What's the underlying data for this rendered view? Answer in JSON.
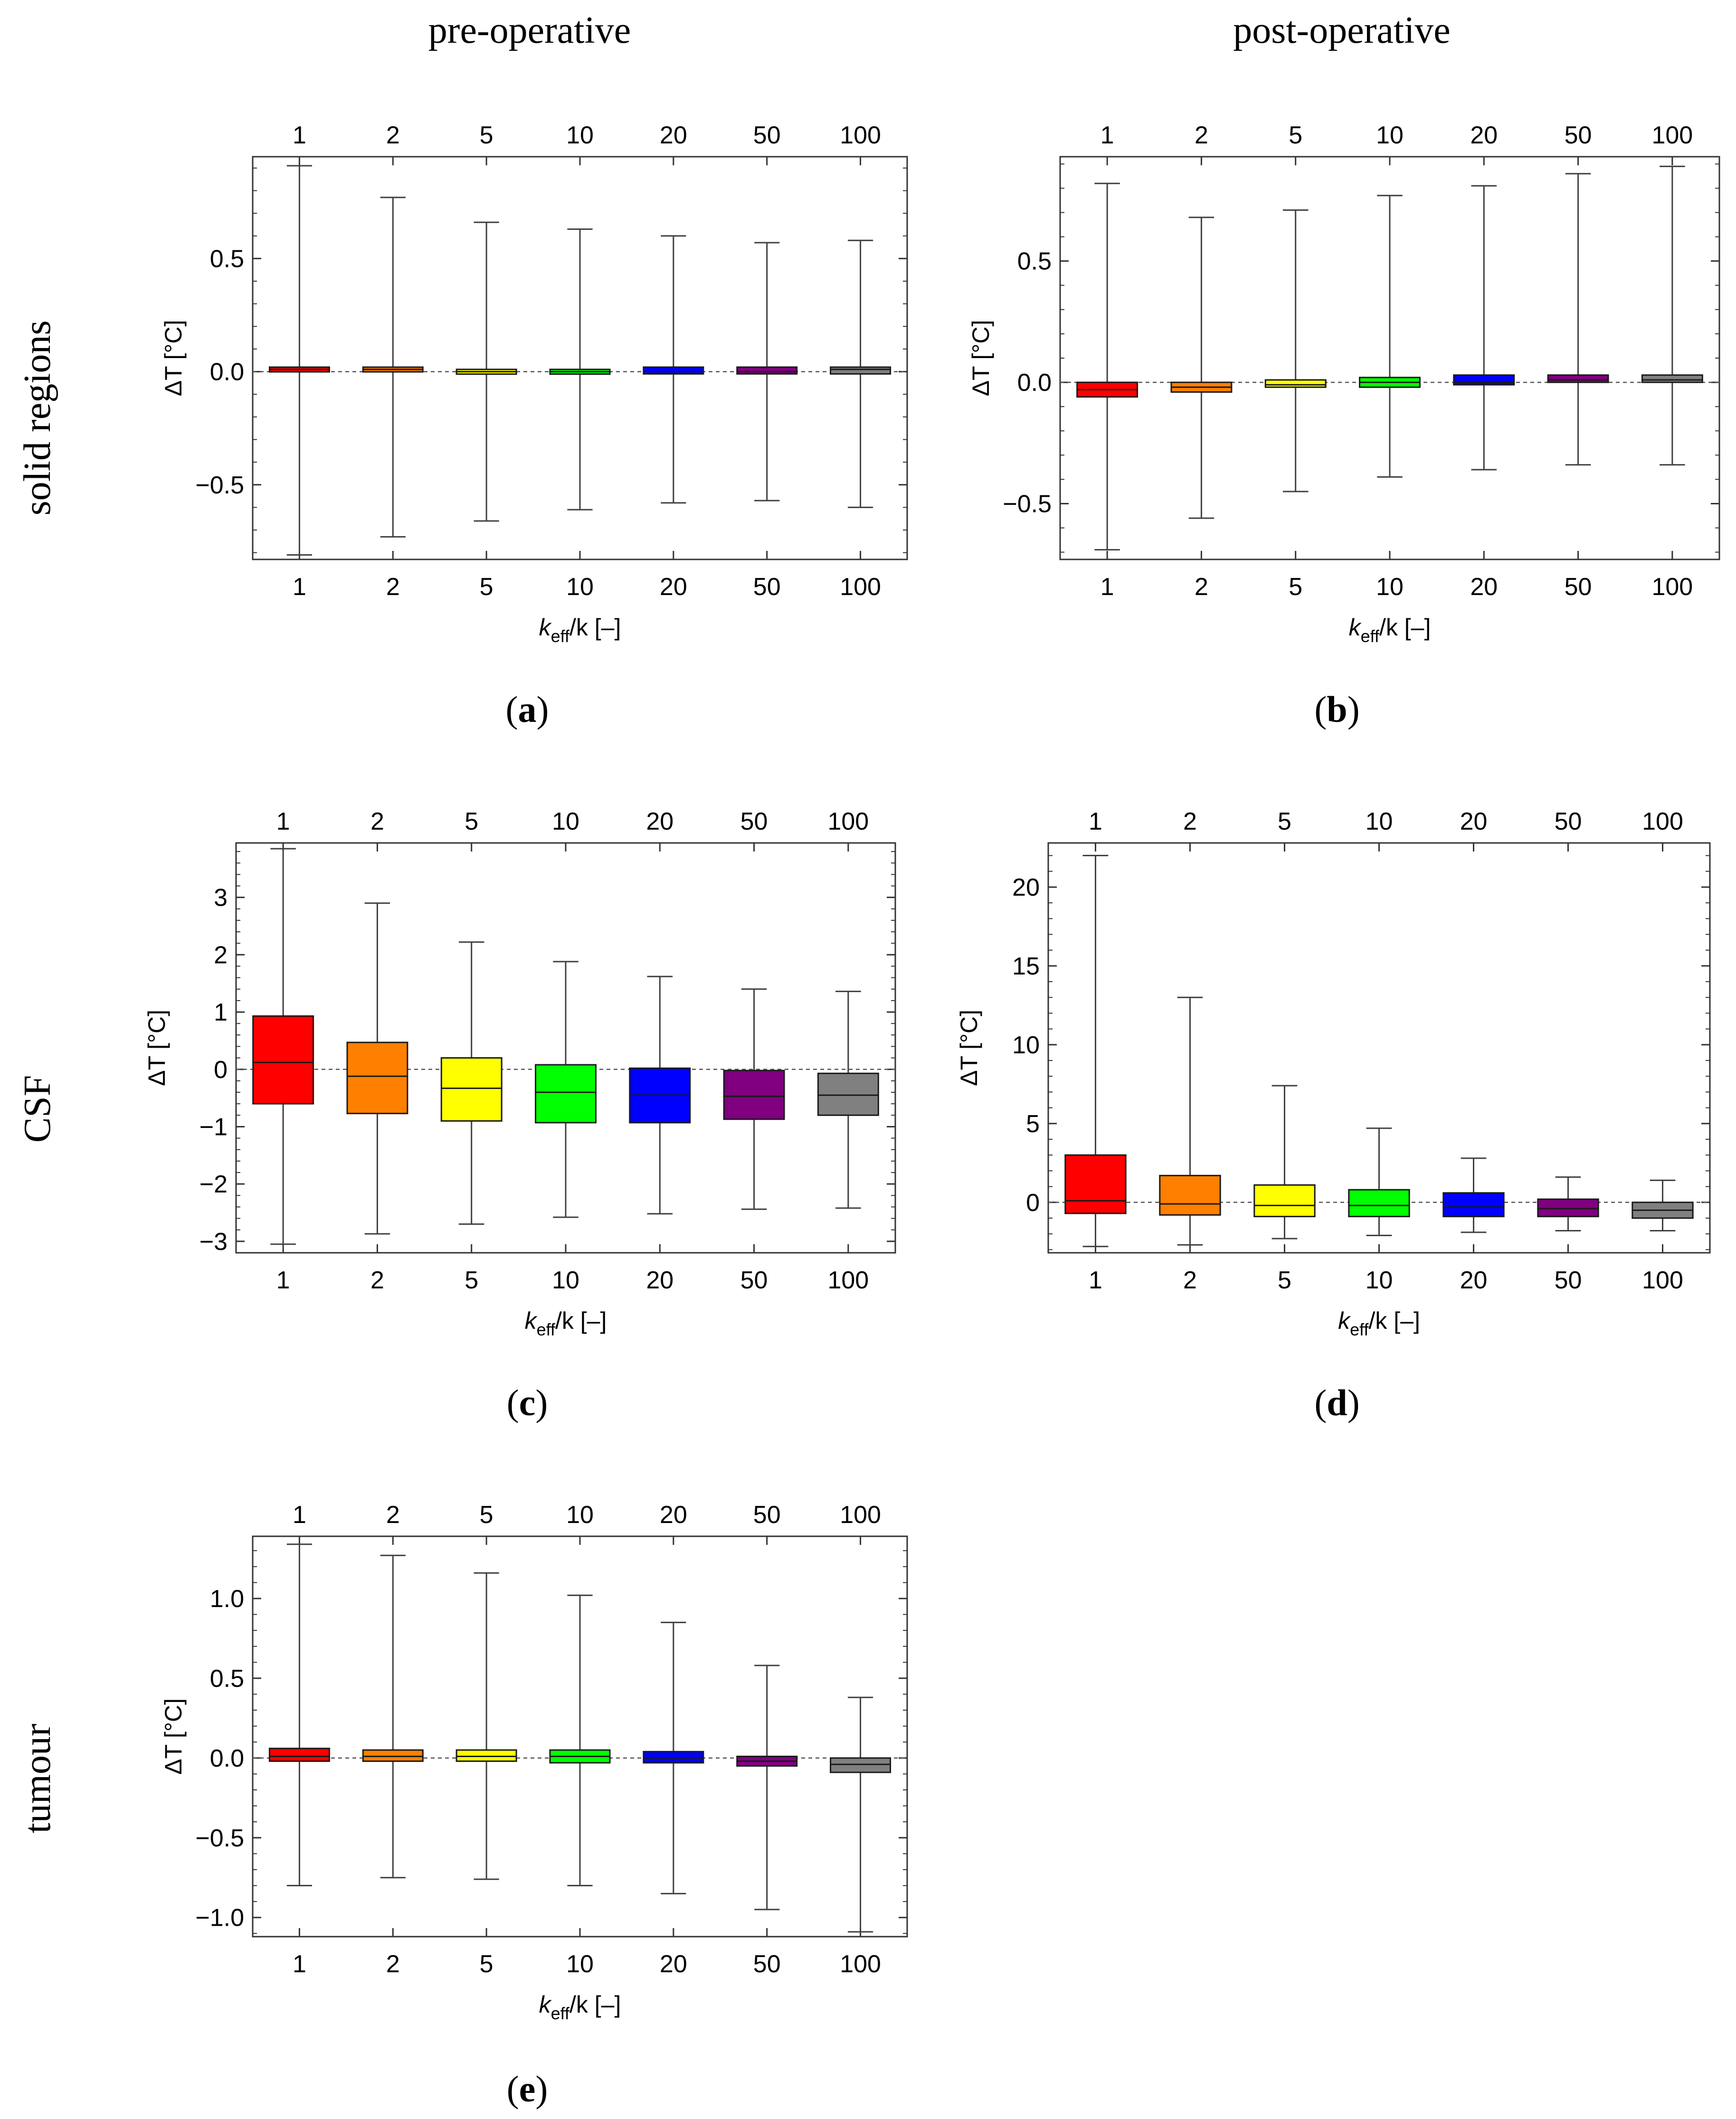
{
  "headers": {
    "pre": "pre-operative",
    "post": "post-operative",
    "row_solid": "solid regions",
    "row_csf": "CSF",
    "row_tumour": "tumour"
  },
  "captions": {
    "a": "a",
    "b": "b",
    "c": "c",
    "d": "d",
    "e": "e"
  },
  "colors": [
    "#ff0000",
    "#ff8000",
    "#ffff00",
    "#00ff00",
    "#0000ff",
    "#800080",
    "#808080"
  ],
  "chart_data": [
    {
      "id": "a",
      "type": "box",
      "categories": [
        "1",
        "2",
        "5",
        "10",
        "20",
        "50",
        "100"
      ],
      "xlabel_main": "k",
      "xlabel_sub": "eff",
      "xlabel_tail": "/k [–]",
      "ylabel": "ΔT [°C]",
      "ylim": [
        -0.83,
        0.95
      ],
      "yticks": [
        -0.5,
        0.0,
        0.5
      ],
      "ytick_labels": [
        "−0.5",
        "0.0",
        "0.5"
      ],
      "series": [
        {
          "name": "1",
          "min": -0.81,
          "q1": 0.0,
          "median": 0.01,
          "q3": 0.02,
          "max": 0.91
        },
        {
          "name": "2",
          "min": -0.73,
          "q1": 0.0,
          "median": 0.01,
          "q3": 0.02,
          "max": 0.77
        },
        {
          "name": "5",
          "min": -0.66,
          "q1": -0.01,
          "median": 0.0,
          "q3": 0.01,
          "max": 0.66
        },
        {
          "name": "10",
          "min": -0.61,
          "q1": -0.01,
          "median": 0.0,
          "q3": 0.01,
          "max": 0.63
        },
        {
          "name": "20",
          "min": -0.58,
          "q1": -0.01,
          "median": 0.0,
          "q3": 0.02,
          "max": 0.6
        },
        {
          "name": "50",
          "min": -0.57,
          "q1": -0.01,
          "median": 0.0,
          "q3": 0.02,
          "max": 0.57
        },
        {
          "name": "100",
          "min": -0.6,
          "q1": -0.01,
          "median": 0.01,
          "q3": 0.02,
          "max": 0.58
        }
      ]
    },
    {
      "id": "b",
      "type": "box",
      "categories": [
        "1",
        "2",
        "5",
        "10",
        "20",
        "50",
        "100"
      ],
      "xlabel_main": "k",
      "xlabel_sub": "eff",
      "xlabel_tail": "/k [–]",
      "ylabel": "ΔT [°C]",
      "ylim": [
        -0.73,
        0.93
      ],
      "yticks": [
        -0.5,
        0.0,
        0.5
      ],
      "ytick_labels": [
        "−0.5",
        "0.0",
        "0.5"
      ],
      "series": [
        {
          "name": "1",
          "min": -0.69,
          "q1": -0.06,
          "median": -0.03,
          "q3": 0.0,
          "max": 0.82
        },
        {
          "name": "2",
          "min": -0.56,
          "q1": -0.04,
          "median": -0.02,
          "q3": 0.0,
          "max": 0.68
        },
        {
          "name": "5",
          "min": -0.45,
          "q1": -0.02,
          "median": -0.01,
          "q3": 0.01,
          "max": 0.71
        },
        {
          "name": "10",
          "min": -0.39,
          "q1": -0.02,
          "median": 0.0,
          "q3": 0.02,
          "max": 0.77
        },
        {
          "name": "20",
          "min": -0.36,
          "q1": -0.01,
          "median": 0.0,
          "q3": 0.03,
          "max": 0.81
        },
        {
          "name": "50",
          "min": -0.34,
          "q1": 0.0,
          "median": 0.01,
          "q3": 0.03,
          "max": 0.86
        },
        {
          "name": "100",
          "min": -0.34,
          "q1": 0.0,
          "median": 0.01,
          "q3": 0.03,
          "max": 0.89
        }
      ]
    },
    {
      "id": "c",
      "type": "box",
      "categories": [
        "1",
        "2",
        "5",
        "10",
        "20",
        "50",
        "100"
      ],
      "xlabel_main": "k",
      "xlabel_sub": "eff",
      "xlabel_tail": "/k [–]",
      "ylabel": "ΔT [°C]",
      "ylim": [
        -3.2,
        3.95
      ],
      "yticks": [
        -3,
        -2,
        -1,
        0,
        1,
        2,
        3
      ],
      "ytick_labels": [
        "−3",
        "−2",
        "−1",
        "0",
        "1",
        "2",
        "3"
      ],
      "series": [
        {
          "name": "1",
          "min": -3.05,
          "q1": -0.6,
          "median": 0.12,
          "q3": 0.93,
          "max": 3.85
        },
        {
          "name": "2",
          "min": -2.87,
          "q1": -0.77,
          "median": -0.12,
          "q3": 0.47,
          "max": 2.9
        },
        {
          "name": "5",
          "min": -2.7,
          "q1": -0.9,
          "median": -0.33,
          "q3": 0.2,
          "max": 2.22
        },
        {
          "name": "10",
          "min": -2.58,
          "q1": -0.93,
          "median": -0.4,
          "q3": 0.08,
          "max": 1.88
        },
        {
          "name": "20",
          "min": -2.52,
          "q1": -0.93,
          "median": -0.45,
          "q3": 0.02,
          "max": 1.62
        },
        {
          "name": "50",
          "min": -2.44,
          "q1": -0.87,
          "median": -0.47,
          "q3": -0.02,
          "max": 1.4
        },
        {
          "name": "100",
          "min": -2.42,
          "q1": -0.8,
          "median": -0.45,
          "q3": -0.07,
          "max": 1.36
        }
      ]
    },
    {
      "id": "d",
      "type": "box",
      "categories": [
        "1",
        "2",
        "5",
        "10",
        "20",
        "50",
        "100"
      ],
      "xlabel_main": "k",
      "xlabel_sub": "eff",
      "xlabel_tail": "/k [–]",
      "ylabel": "ΔT [°C]",
      "ylim": [
        -3.2,
        22.8
      ],
      "yticks": [
        0,
        5,
        10,
        15,
        20
      ],
      "ytick_labels": [
        "0",
        "5",
        "10",
        "15",
        "20"
      ],
      "series": [
        {
          "name": "1",
          "min": -2.8,
          "q1": -0.7,
          "median": 0.1,
          "q3": 3.0,
          "max": 22.0
        },
        {
          "name": "2",
          "min": -2.7,
          "q1": -0.8,
          "median": -0.1,
          "q3": 1.7,
          "max": 13.0
        },
        {
          "name": "5",
          "min": -2.3,
          "q1": -0.9,
          "median": -0.2,
          "q3": 1.1,
          "max": 7.4
        },
        {
          "name": "10",
          "min": -2.1,
          "q1": -0.9,
          "median": -0.2,
          "q3": 0.8,
          "max": 4.7
        },
        {
          "name": "20",
          "min": -1.9,
          "q1": -0.9,
          "median": -0.3,
          "q3": 0.6,
          "max": 2.8
        },
        {
          "name": "50",
          "min": -1.8,
          "q1": -0.9,
          "median": -0.4,
          "q3": 0.2,
          "max": 1.6
        },
        {
          "name": "100",
          "min": -1.8,
          "q1": -1.0,
          "median": -0.5,
          "q3": 0.0,
          "max": 1.4
        }
      ]
    },
    {
      "id": "e",
      "type": "box",
      "categories": [
        "1",
        "2",
        "5",
        "10",
        "20",
        "50",
        "100"
      ],
      "xlabel_main": "k",
      "xlabel_sub": "eff",
      "xlabel_tail": "/k [–]",
      "ylabel": "ΔT [°C]",
      "ylim": [
        -1.12,
        1.39
      ],
      "yticks": [
        -1.0,
        -0.5,
        0.0,
        0.5,
        1.0
      ],
      "ytick_labels": [
        "−1.0",
        "−0.5",
        "0.0",
        "0.5",
        "1.0"
      ],
      "series": [
        {
          "name": "1",
          "min": -0.8,
          "q1": -0.02,
          "median": 0.01,
          "q3": 0.06,
          "max": 1.34
        },
        {
          "name": "2",
          "min": -0.75,
          "q1": -0.02,
          "median": 0.01,
          "q3": 0.05,
          "max": 1.27
        },
        {
          "name": "5",
          "min": -0.76,
          "q1": -0.02,
          "median": 0.01,
          "q3": 0.05,
          "max": 1.16
        },
        {
          "name": "10",
          "min": -0.8,
          "q1": -0.03,
          "median": 0.01,
          "q3": 0.05,
          "max": 1.02
        },
        {
          "name": "20",
          "min": -0.85,
          "q1": -0.03,
          "median": 0.0,
          "q3": 0.04,
          "max": 0.85
        },
        {
          "name": "50",
          "min": -0.95,
          "q1": -0.05,
          "median": -0.02,
          "q3": 0.01,
          "max": 0.58
        },
        {
          "name": "100",
          "min": -1.09,
          "q1": -0.09,
          "median": -0.04,
          "q3": 0.0,
          "max": 0.38
        }
      ]
    }
  ]
}
